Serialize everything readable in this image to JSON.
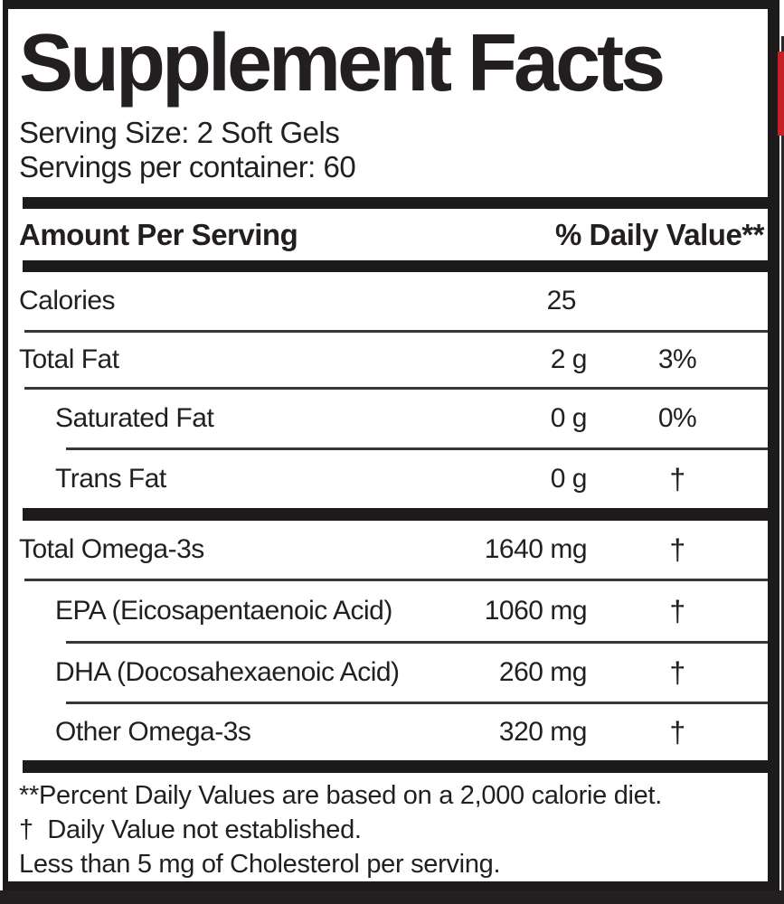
{
  "label": {
    "title": "Supplement Facts",
    "serving_size": "Serving Size: 2 Soft Gels",
    "servings_per_container": "Servings per container: 60",
    "header": {
      "amount_per_serving": "Amount Per Serving",
      "daily_value": "% Daily Value**"
    },
    "rows": [
      {
        "name": "Calories",
        "amount": "25",
        "dv": "",
        "indent": false
      },
      {
        "name": "Total Fat",
        "amount": "2 g",
        "dv": "3%",
        "indent": false
      },
      {
        "name": "Saturated Fat",
        "amount": "0 g",
        "dv": "0%",
        "indent": true
      },
      {
        "name": "Trans Fat",
        "amount": "0 g",
        "dv": "†",
        "indent": true
      },
      {
        "name": "Total Omega-3s",
        "amount": "1640 mg",
        "dv": "†",
        "indent": false
      },
      {
        "name": "EPA (Eicosapentaenoic Acid)",
        "amount": "1060 mg",
        "dv": "†",
        "indent": true
      },
      {
        "name": "DHA (Docosahexaenoic Acid)",
        "amount": "260 mg",
        "dv": "†",
        "indent": true
      },
      {
        "name": "Other Omega-3s",
        "amount": "320 mg",
        "dv": "†",
        "indent": true
      }
    ],
    "footnotes": [
      "**Percent Daily Values are based on a 2,000 calorie diet.",
      "†  Daily Value not established.",
      "Less than 5 mg of Cholesterol per serving."
    ],
    "colors": {
      "ink": "#231f20",
      "accent_red": "#c62127",
      "background": "#ffffff"
    }
  }
}
